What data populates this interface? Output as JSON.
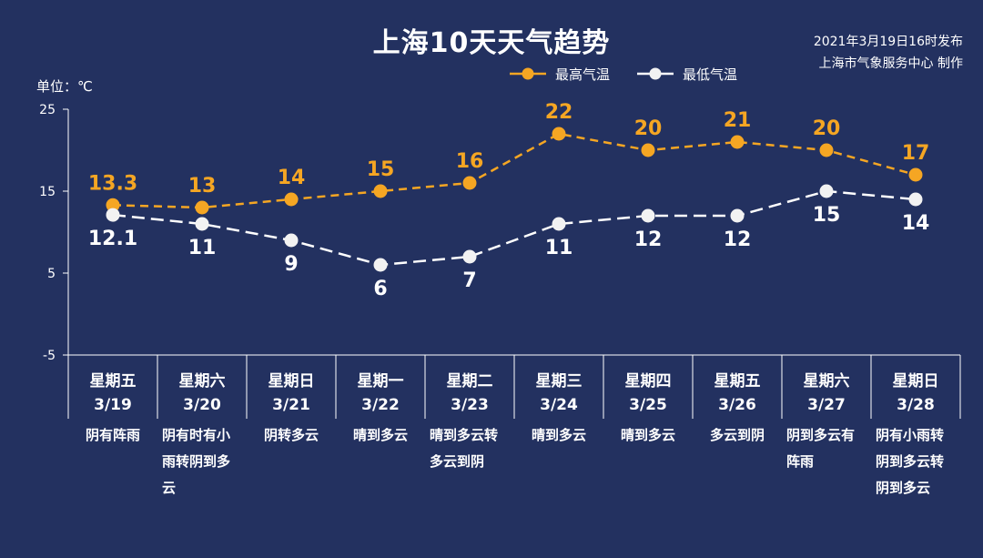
{
  "title": "上海10天天气趋势",
  "issuer": {
    "line1": "2021年3月19日16时发布",
    "line2": "上海市气象服务中心 制作"
  },
  "unit_label": "单位：℃",
  "colors": {
    "background": "#233160",
    "high": "#f5a623",
    "low": "#ffffff",
    "axis": "#ffffff"
  },
  "chart_data": {
    "type": "line",
    "title": "上海10天天气趋势",
    "ylabel": "单位：℃",
    "ylim": [
      -5,
      25
    ],
    "yticks": [
      -5,
      5,
      15,
      25
    ],
    "grid": false,
    "legend_position": "top-right",
    "categories": [
      "3/19",
      "3/20",
      "3/21",
      "3/22",
      "3/23",
      "3/24",
      "3/25",
      "3/26",
      "3/27",
      "3/28"
    ],
    "series": [
      {
        "name": "最高气温",
        "values": [
          13.3,
          13,
          14,
          15,
          16,
          22,
          20,
          21,
          20,
          17
        ],
        "labels": [
          "13.3",
          "13",
          "14",
          "15",
          "16",
          "22",
          "20",
          "21",
          "20",
          "17"
        ]
      },
      {
        "name": "最低气温",
        "values": [
          12.1,
          11,
          9,
          6,
          7,
          11,
          12,
          12,
          15,
          14
        ],
        "labels": [
          "12.1",
          "11",
          "9",
          "6",
          "7",
          "11",
          "12",
          "12",
          "15",
          "14"
        ]
      }
    ]
  },
  "days": [
    {
      "weekday": "星期五",
      "date": "3/19",
      "weather": "阴有阵雨"
    },
    {
      "weekday": "星期六",
      "date": "3/20",
      "weather": "阴有时有小雨转阴到多云"
    },
    {
      "weekday": "星期日",
      "date": "3/21",
      "weather": "阴转多云"
    },
    {
      "weekday": "星期一",
      "date": "3/22",
      "weather": "晴到多云"
    },
    {
      "weekday": "星期二",
      "date": "3/23",
      "weather": "晴到多云转多云到阴"
    },
    {
      "weekday": "星期三",
      "date": "3/24",
      "weather": "晴到多云"
    },
    {
      "weekday": "星期四",
      "date": "3/25",
      "weather": "晴到多云"
    },
    {
      "weekday": "星期五",
      "date": "3/26",
      "weather": "多云到阴"
    },
    {
      "weekday": "星期六",
      "date": "3/27",
      "weather": "阴到多云有阵雨"
    },
    {
      "weekday": "星期日",
      "date": "3/28",
      "weather": "阴有小雨转阴到多云转阴到多云"
    }
  ]
}
